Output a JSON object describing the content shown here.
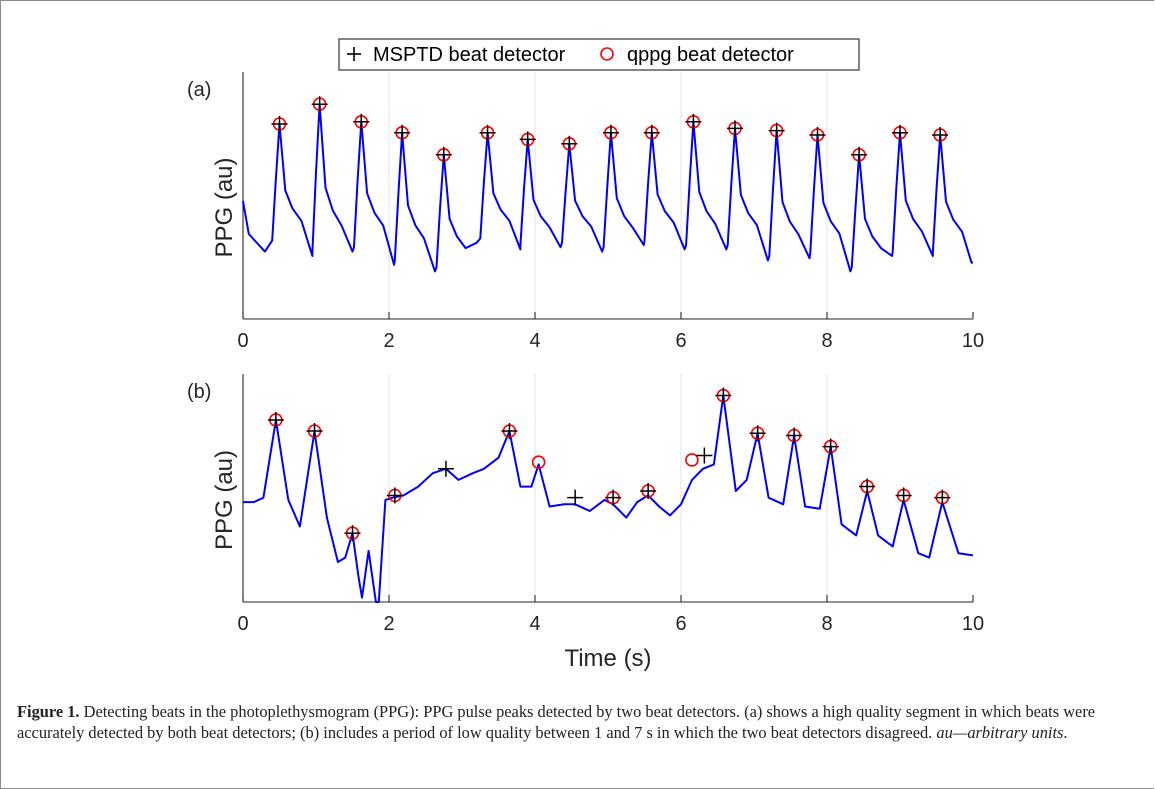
{
  "legend": {
    "items": [
      {
        "label": "MSPTD beat detector",
        "marker": "plus",
        "color": "#000000"
      },
      {
        "label": "qppg beat detector",
        "marker": "circle",
        "color": "#ff0000"
      }
    ]
  },
  "chart_data": [
    {
      "type": "line",
      "panel_label": "(a)",
      "ylabel": "PPG (au)",
      "xlabel": "",
      "xlim": [
        0,
        10
      ],
      "ylim": [
        0,
        1
      ],
      "xticks": [
        0,
        2,
        4,
        6,
        8,
        10
      ],
      "grid": "vertical",
      "line_color": "#0000ff",
      "series": [
        {
          "name": "",
          "peak_x": [
            0.5,
            1.05,
            1.62,
            2.18,
            2.75,
            3.35,
            3.9,
            4.47,
            5.04,
            5.6,
            6.17,
            6.74,
            7.31,
            7.87,
            8.44,
            9.0,
            9.55
          ],
          "peak_y": [
            0.8,
            0.89,
            0.81,
            0.76,
            0.66,
            0.76,
            0.73,
            0.71,
            0.76,
            0.76,
            0.81,
            0.78,
            0.77,
            0.75,
            0.66,
            0.76,
            0.75
          ],
          "trough_y": [
            0.25,
            0.2,
            0.22,
            0.16,
            0.13,
            0.26,
            0.23,
            0.24,
            0.22,
            0.25,
            0.23,
            0.23,
            0.18,
            0.19,
            0.13,
            0.2,
            0.2
          ]
        },
        {
          "name": "MSPTD beat detector",
          "x": [
            0.5,
            1.05,
            1.62,
            2.18,
            2.75,
            3.35,
            3.9,
            4.47,
            5.04,
            5.6,
            6.17,
            6.74,
            7.31,
            7.87,
            8.44,
            9.0,
            9.55
          ],
          "y": [
            0.8,
            0.89,
            0.81,
            0.76,
            0.66,
            0.76,
            0.73,
            0.71,
            0.76,
            0.76,
            0.81,
            0.78,
            0.77,
            0.75,
            0.66,
            0.76,
            0.75
          ]
        },
        {
          "name": "qppg beat detector",
          "x": [
            0.5,
            1.05,
            1.62,
            2.18,
            2.75,
            3.35,
            3.9,
            4.47,
            5.04,
            5.6,
            6.17,
            6.74,
            7.31,
            7.87,
            8.44,
            9.0,
            9.55
          ],
          "y": [
            0.8,
            0.89,
            0.81,
            0.76,
            0.66,
            0.76,
            0.73,
            0.71,
            0.76,
            0.76,
            0.81,
            0.78,
            0.77,
            0.75,
            0.66,
            0.76,
            0.75
          ]
        }
      ]
    },
    {
      "type": "line",
      "panel_label": "(b)",
      "ylabel": "PPG (au)",
      "xlabel": "Time (s)",
      "xlim": [
        0,
        10
      ],
      "ylim": [
        0,
        1
      ],
      "xticks": [
        0,
        2,
        4,
        6,
        8,
        10
      ],
      "grid": "vertical",
      "line_color": "#0000ff",
      "series": [
        {
          "name": "",
          "x": [
            0,
            0.15,
            0.28,
            0.45,
            0.62,
            0.78,
            0.98,
            1.15,
            1.3,
            1.4,
            1.5,
            1.58,
            1.63,
            1.72,
            1.82,
            1.86,
            1.95,
            2.05,
            2.2,
            2.4,
            2.6,
            2.78,
            2.95,
            3.15,
            3.3,
            3.5,
            3.65,
            3.8,
            3.95,
            4.05,
            4.2,
            4.4,
            4.55,
            4.75,
            4.95,
            5.07,
            5.25,
            5.4,
            5.55,
            5.7,
            5.85,
            6.0,
            6.15,
            6.3,
            6.45,
            6.58,
            6.75,
            6.9,
            7.05,
            7.2,
            7.4,
            7.55,
            7.7,
            7.9,
            8.05,
            8.2,
            8.4,
            8.55,
            8.7,
            8.9,
            9.05,
            9.25,
            9.4,
            9.58,
            9.8,
            10.0
          ],
          "y": [
            0.45,
            0.45,
            0.47,
            0.82,
            0.46,
            0.34,
            0.77,
            0.38,
            0.18,
            0.2,
            0.31,
            0.12,
            0.02,
            0.23,
            0.0,
            0.0,
            0.46,
            0.47,
            0.48,
            0.52,
            0.58,
            0.6,
            0.55,
            0.58,
            0.6,
            0.65,
            0.77,
            0.52,
            0.52,
            0.62,
            0.43,
            0.44,
            0.44,
            0.41,
            0.46,
            0.44,
            0.38,
            0.45,
            0.48,
            0.43,
            0.39,
            0.44,
            0.55,
            0.6,
            0.62,
            0.93,
            0.5,
            0.55,
            0.76,
            0.47,
            0.44,
            0.75,
            0.43,
            0.42,
            0.7,
            0.35,
            0.3,
            0.5,
            0.3,
            0.25,
            0.46,
            0.22,
            0.2,
            0.45,
            0.22,
            0.21
          ]
        },
        {
          "name": "MSPTD beat detector",
          "x": [
            0.45,
            0.98,
            1.5,
            2.08,
            2.78,
            3.65,
            4.55,
            5.07,
            5.55,
            6.32,
            6.58,
            7.05,
            7.55,
            8.05,
            8.55,
            9.05,
            9.58
          ],
          "y": [
            0.82,
            0.77,
            0.31,
            0.48,
            0.6,
            0.77,
            0.47,
            0.47,
            0.5,
            0.66,
            0.93,
            0.76,
            0.75,
            0.7,
            0.52,
            0.48,
            0.47
          ]
        },
        {
          "name": "qppg beat detector",
          "x": [
            0.45,
            0.98,
            1.5,
            2.08,
            3.65,
            4.05,
            5.07,
            5.55,
            6.15,
            6.58,
            7.05,
            7.55,
            8.05,
            8.55,
            9.05,
            9.58
          ],
          "y": [
            0.82,
            0.77,
            0.31,
            0.48,
            0.77,
            0.63,
            0.47,
            0.5,
            0.64,
            0.93,
            0.76,
            0.75,
            0.7,
            0.52,
            0.48,
            0.47
          ]
        }
      ]
    }
  ],
  "caption": {
    "label": "Figure 1.",
    "text": " Detecting beats in the photoplethysmogram (PPG): PPG pulse peaks detected by two beat detectors. (a) shows a high quality segment in which beats were accurately detected by both beat detectors; (b) includes a period of low quality between 1 and 7 s in which the two beat detectors disagreed. ",
    "emphasis": "au—arbitrary units"
  }
}
